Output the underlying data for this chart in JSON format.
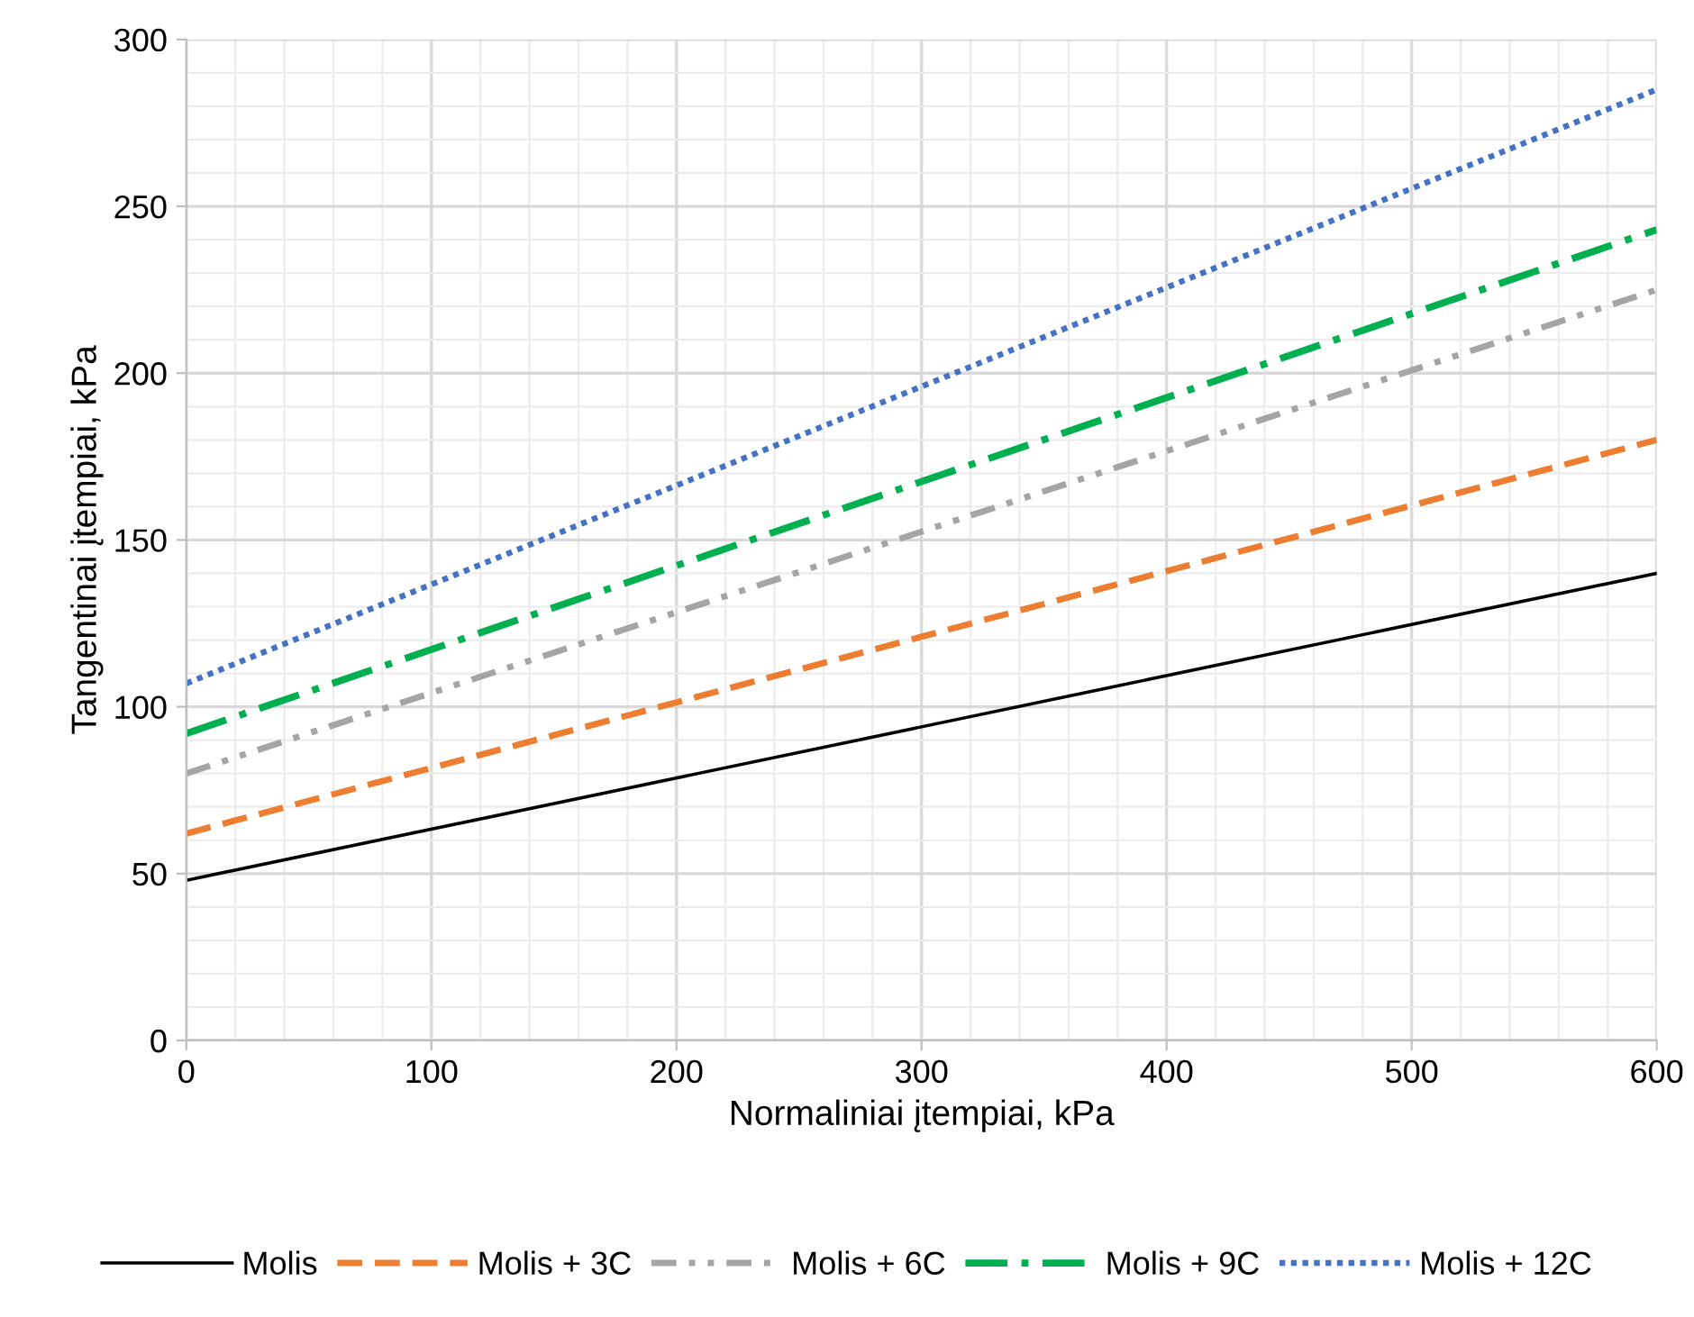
{
  "chart_data": {
    "type": "line",
    "xlabel": "Normaliniai įtempiai, kPa",
    "ylabel": "Tangentinai įtempiai, kPa",
    "x": [
      0,
      600
    ],
    "series": [
      {
        "name": "Molis",
        "color": "#000000",
        "values": [
          48,
          140
        ],
        "line_style": "solid"
      },
      {
        "name": "Molis + 3C",
        "color": "#ed7d31",
        "values": [
          62,
          180
        ],
        "line_style": "dashed"
      },
      {
        "name": "Molis + 6C",
        "color": "#a5a5a5",
        "values": [
          80,
          225
        ],
        "line_style": "dashdotdot"
      },
      {
        "name": "Molis + 9C",
        "color": "#00b050",
        "values": [
          92,
          243
        ],
        "line_style": "dashdot"
      },
      {
        "name": "Molis + 12C",
        "color": "#4472c4",
        "values": [
          107,
          285
        ],
        "line_style": "dotted"
      }
    ],
    "xlim": [
      0,
      600
    ],
    "xticks": [
      0,
      100,
      200,
      300,
      400,
      500,
      600
    ],
    "ylim": [
      0,
      300
    ],
    "yticks": [
      0,
      50,
      100,
      150,
      200,
      250,
      300
    ],
    "grid": true,
    "legend": "bottom",
    "marker": "none"
  }
}
